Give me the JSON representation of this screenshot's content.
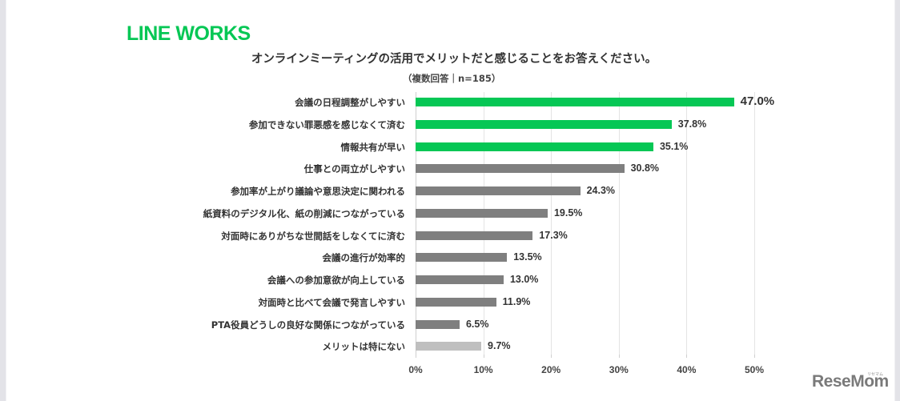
{
  "brand": {
    "name": "LINE WORKS",
    "color": "#06c755"
  },
  "header": {
    "title": "オンラインミーティングの活用でメリットだと感じることをお答えください。",
    "subtitle": "（複数回答｜n=185）"
  },
  "watermark": {
    "text": "ReseMom",
    "kana": "リセマム"
  },
  "colors": {
    "highlight": "#06c755",
    "default": "#7f7f7f",
    "none": "#bfbfbf",
    "grid": "#e4e4e4"
  },
  "axis": {
    "ticks": [
      "0%",
      "10%",
      "20%",
      "30%",
      "40%",
      "50%"
    ]
  },
  "chart_data": {
    "type": "bar",
    "orientation": "horizontal",
    "title": "オンラインミーティングの活用でメリットだと感じることをお答えください。",
    "subtitle": "（複数回答｜n=185）",
    "xlabel": "",
    "ylabel": "",
    "xlim": [
      0,
      50
    ],
    "x_ticks": [
      "0%",
      "10%",
      "20%",
      "30%",
      "40%",
      "50%"
    ],
    "grid": true,
    "legend": null,
    "categories": [
      "会議の日程調整がしやすい",
      "参加できない罪悪感を感じなくて済む",
      "情報共有が早い",
      "仕事との両立がしやすい",
      "参加率が上がり議論や意思決定に関われる",
      "紙資料のデジタル化、紙の削減につながっている",
      "対面時にありがちな世間話をしなくてに済む",
      "会議の進行が効率的",
      "会議への参加意欲が向上している",
      "対面時と比べて会議で発言しやすい",
      "PTA役員どうしの良好な関係につながっている",
      "メリットは特にない"
    ],
    "values": [
      47.0,
      37.8,
      35.1,
      30.8,
      24.3,
      19.5,
      17.3,
      13.5,
      13.0,
      11.9,
      6.5,
      9.7
    ],
    "value_labels": [
      "47.0%",
      "37.8%",
      "35.1%",
      "30.8%",
      "24.3%",
      "19.5%",
      "17.3%",
      "13.5%",
      "13.0%",
      "11.9%",
      "6.5%",
      "9.7%"
    ],
    "bar_colors": [
      "#06c755",
      "#06c755",
      "#06c755",
      "#7f7f7f",
      "#7f7f7f",
      "#7f7f7f",
      "#7f7f7f",
      "#7f7f7f",
      "#7f7f7f",
      "#7f7f7f",
      "#7f7f7f",
      "#bfbfbf"
    ]
  }
}
